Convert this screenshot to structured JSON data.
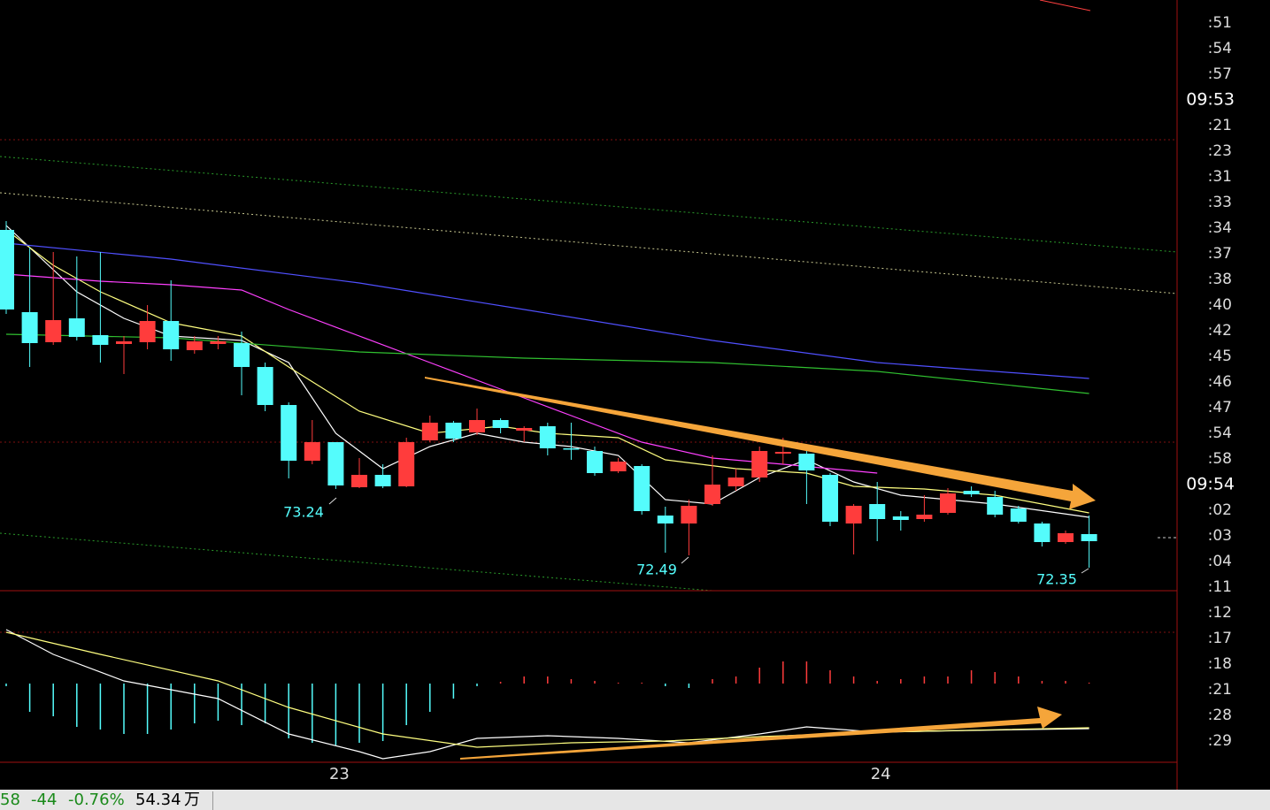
{
  "chart_data": {
    "type": "candlestick",
    "categories": [
      null,
      null,
      null,
      null,
      null,
      null,
      null,
      null,
      null,
      null,
      null,
      null,
      null,
      null,
      "23",
      null,
      null,
      null,
      null,
      null,
      null,
      null,
      null,
      null,
      null,
      null,
      null,
      null,
      null,
      null,
      null,
      null,
      null,
      null,
      null,
      null,
      null,
      "24",
      null,
      null,
      null,
      null,
      null,
      null,
      null,
      null,
      null
    ],
    "open": [
      76.17,
      75.24,
      74.9,
      75.17,
      74.98,
      74.88,
      74.9,
      75.14,
      74.81,
      74.88,
      74.89,
      74.62,
      74.19,
      73.56,
      73.77,
      73.26,
      73.4,
      73.27,
      73.79,
      73.99,
      73.88,
      74.02,
      73.9,
      73.95,
      73.7,
      73.67,
      73.44,
      73.5,
      72.94,
      72.85,
      73.07,
      73.27,
      73.37,
      73.64,
      73.64,
      73.4,
      72.85,
      73.07,
      72.93,
      72.9,
      72.97,
      73.22,
      73.15,
      73.02,
      72.85,
      72.64,
      72.73
    ],
    "high": [
      76.27,
      75.97,
      75.92,
      75.87,
      75.92,
      74.97,
      75.32,
      75.6,
      74.97,
      74.97,
      75.02,
      74.67,
      74.22,
      74.02,
      73.77,
      73.59,
      73.52,
      73.82,
      74.07,
      74.01,
      74.15,
      74.04,
      73.95,
      73.99,
      73.99,
      73.72,
      73.59,
      73.52,
      73.04,
      73.12,
      73.62,
      73.47,
      73.72,
      73.82,
      73.67,
      73.42,
      73.07,
      73.32,
      72.99,
      73.17,
      73.25,
      73.27,
      73.22,
      73.05,
      72.87,
      72.77,
      72.94
    ],
    "low": [
      75.22,
      74.62,
      74.87,
      74.92,
      74.67,
      74.54,
      74.82,
      74.69,
      74.77,
      74.82,
      74.3,
      74.12,
      73.36,
      73.52,
      73.24,
      73.25,
      73.25,
      73.26,
      73.77,
      73.77,
      73.85,
      73.87,
      73.77,
      73.62,
      73.57,
      73.39,
      73.42,
      72.95,
      72.52,
      72.49,
      73.05,
      73.22,
      73.32,
      73.52,
      73.07,
      72.82,
      72.5,
      72.65,
      72.77,
      72.87,
      72.95,
      73.15,
      72.92,
      72.85,
      72.59,
      72.62,
      72.35
    ],
    "close": [
      75.27,
      74.89,
      75.15,
      74.96,
      74.87,
      74.91,
      75.14,
      74.82,
      74.91,
      74.91,
      74.62,
      74.19,
      73.56,
      73.77,
      73.28,
      73.4,
      73.27,
      73.77,
      73.99,
      73.81,
      74.02,
      73.93,
      73.93,
      73.7,
      73.69,
      73.42,
      73.55,
      72.99,
      72.85,
      73.05,
      73.29,
      73.37,
      73.67,
      73.66,
      73.45,
      72.87,
      73.05,
      72.9,
      72.89,
      72.95,
      73.19,
      73.18,
      72.95,
      72.87,
      72.64,
      72.74,
      72.65
    ],
    "up_color": "#ff3c3c",
    "down_color": "#54fcfc",
    "ylim": [
      72.09,
      78.77
    ],
    "lines": [
      {
        "color": "#ffffff",
        "x": [
          0,
          1,
          3,
          5,
          7,
          10,
          12,
          14,
          16,
          18,
          20,
          22,
          24,
          26,
          28,
          30,
          32,
          34,
          36,
          38,
          42,
          46
        ],
        "values": [
          76.22,
          75.97,
          75.47,
          75.17,
          74.97,
          74.92,
          74.67,
          73.87,
          73.47,
          73.72,
          73.87,
          73.77,
          73.72,
          73.62,
          73.12,
          73.07,
          73.37,
          73.57,
          73.32,
          73.17,
          73.07,
          72.92
        ]
      },
      {
        "color": "#ffff80",
        "x": [
          0,
          2,
          4,
          7,
          10,
          12,
          15,
          18,
          21,
          23,
          26,
          28,
          31,
          34,
          36,
          39,
          42,
          46
        ],
        "values": [
          76.17,
          75.77,
          75.47,
          75.12,
          74.97,
          74.62,
          74.12,
          73.87,
          73.95,
          73.87,
          73.82,
          73.57,
          73.47,
          73.42,
          73.27,
          73.24,
          73.17,
          72.97
        ]
      },
      {
        "color": "#ff40ff",
        "x": [
          0,
          4,
          7,
          10,
          12,
          15,
          18,
          21,
          24,
          27,
          30,
          33,
          37
        ],
        "values": [
          75.67,
          75.59,
          75.55,
          75.49,
          75.27,
          74.97,
          74.67,
          74.37,
          74.07,
          73.77,
          73.59,
          73.52,
          73.42
        ]
      },
      {
        "color": "#5050ff",
        "x": [
          0,
          7,
          15,
          22,
          30,
          37,
          46
        ],
        "values": [
          76.02,
          75.84,
          75.57,
          75.27,
          74.92,
          74.67,
          74.49
        ]
      },
      {
        "color": "#30c030",
        "x": [
          0,
          7,
          15,
          22,
          30,
          37,
          46
        ],
        "values": [
          74.99,
          74.95,
          74.79,
          74.72,
          74.67,
          74.57,
          74.32
        ]
      }
    ],
    "annotations": [
      "73.24",
      "72.49",
      "72.35"
    ],
    "macd": {
      "ylim": [
        -0.435,
        0.515
      ],
      "histogram": [
        -0.015,
        -0.16,
        -0.185,
        -0.245,
        -0.26,
        -0.285,
        -0.285,
        -0.26,
        -0.225,
        -0.21,
        -0.235,
        -0.225,
        -0.31,
        -0.335,
        -0.35,
        -0.335,
        -0.325,
        -0.235,
        -0.16,
        -0.085,
        -0.015,
        0.01,
        0.04,
        0.04,
        0.025,
        0.015,
        0.005,
        0.005,
        -0.015,
        -0.025,
        0.025,
        0.04,
        0.09,
        0.125,
        0.125,
        0.075,
        0.04,
        0.015,
        0.025,
        0.04,
        0.04,
        0.075,
        0.065,
        0.04,
        0.015,
        0.015,
        0.005
      ],
      "lines": [
        {
          "color": "#ffffff",
          "x": [
            0,
            2,
            5,
            9,
            12,
            15,
            16,
            18,
            20,
            23,
            26,
            29,
            32,
            34,
            37,
            41,
            46
          ],
          "values": [
            0.305,
            0.165,
            0.015,
            -0.085,
            -0.285,
            -0.385,
            -0.425,
            -0.385,
            -0.31,
            -0.295,
            -0.31,
            -0.335,
            -0.285,
            -0.245,
            -0.275,
            -0.265,
            -0.255
          ]
        },
        {
          "color": "#ffff80",
          "x": [
            0,
            4,
            9,
            12,
            16,
            20,
            24,
            28,
            32,
            37,
            46
          ],
          "values": [
            0.29,
            0.165,
            0.015,
            -0.135,
            -0.285,
            -0.36,
            -0.335,
            -0.325,
            -0.3,
            -0.275,
            -0.25
          ]
        }
      ]
    }
  },
  "trade_times": [
    ":51",
    ":54",
    ":57",
    "09:53",
    ":21",
    ":23",
    ":31",
    ":33",
    ":34",
    ":37",
    ":38",
    ":40",
    ":42",
    ":45",
    ":46",
    ":47",
    ":54",
    ":58",
    "09:54",
    ":02",
    ":03",
    ":04",
    ":11",
    ":12",
    ":17",
    ":18",
    ":21",
    ":28",
    ":29"
  ],
  "status_bar": [
    "58",
    "-44",
    "-0.76%",
    "54.34",
    "万"
  ]
}
